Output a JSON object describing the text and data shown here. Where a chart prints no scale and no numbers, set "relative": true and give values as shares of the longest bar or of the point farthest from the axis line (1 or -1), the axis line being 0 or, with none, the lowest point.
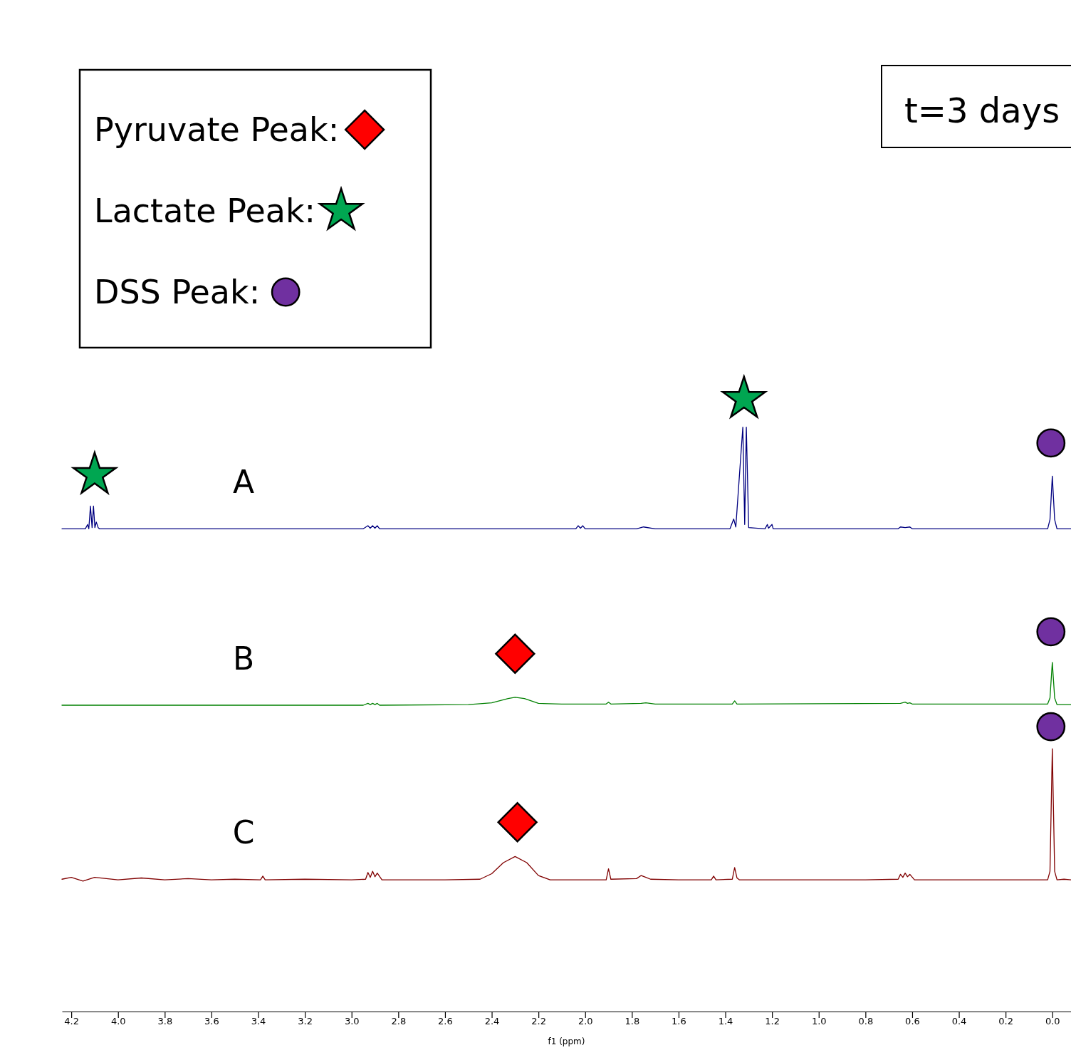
{
  "chart_data": {
    "type": "line",
    "title": "t=3 days",
    "xlabel": "f1 (ppm)",
    "relative": true,
    "legend": "top left",
    "grid": false,
    "tick_labels": "x",
    "xlim": [
      4.24,
      -0.08
    ],
    "xticks": [
      4.2,
      {
        "value": 4.0,
        "label": "4.0"
      },
      3.8,
      3.6,
      3.4,
      3.2,
      {
        "value": 3.0,
        "label": "3.0"
      },
      2.8,
      2.6,
      2.4,
      2.2,
      {
        "value": 2.0,
        "label": "2.0"
      },
      1.8,
      1.6,
      1.4,
      1.2,
      {
        "value": 1.0,
        "label": "1.0"
      },
      0.8,
      0.6,
      0.4,
      0.2,
      {
        "value": 0,
        "label": "0.0"
      }
    ],
    "annotations": [
      "A",
      "B",
      "C"
    ],
    "series": [
      {
        "color": "#000080",
        "marker": "none",
        "x": [
          4.24,
          4.14,
          4.13,
          4.125,
          4.118,
          4.111,
          4.105,
          4.099,
          4.093,
          4.085,
          4.08,
          2.95,
          2.93,
          2.92,
          2.91,
          2.9,
          2.89,
          2.88,
          2.04,
          2.03,
          2.02,
          2.01,
          2.0,
          1.78,
          1.75,
          1.7,
          1.38,
          1.364,
          1.355,
          1.325,
          1.317,
          1.31,
          1.3,
          1.23,
          1.22,
          1.215,
          1.2,
          1.195,
          0.66,
          0.65,
          0.63,
          0.61,
          0.6,
          0.02,
          0.01,
          0,
          -0.01,
          -0.02,
          -0.08
        ],
        "values": [
          0.788,
          0.788,
          0.795,
          0.788,
          0.825,
          0.79,
          0.825,
          0.79,
          0.799,
          0.79,
          0.788,
          0.788,
          0.793,
          0.789,
          0.793,
          0.789,
          0.793,
          0.788,
          0.788,
          0.793,
          0.789,
          0.793,
          0.788,
          0.788,
          0.791,
          0.788,
          0.788,
          0.804,
          0.791,
          0.954,
          0.795,
          0.954,
          0.79,
          0.788,
          0.795,
          0.789,
          0.795,
          0.788,
          0.788,
          0.791,
          0.79,
          0.791,
          0.788,
          0.788,
          0.803,
          0.874,
          0.803,
          0.788,
          0.788
        ]
      },
      {
        "color": "#008000",
        "marker": "none",
        "x": [
          4.24,
          2.95,
          2.93,
          2.92,
          2.91,
          2.9,
          2.89,
          2.88,
          2.5,
          2.4,
          2.33,
          2.3,
          2.26,
          2.2,
          2.1,
          1.91,
          1.9,
          1.89,
          1.76,
          1.74,
          1.7,
          1.37,
          1.36,
          1.35,
          0.65,
          0.63,
          0.62,
          0.61,
          0.6,
          0.02,
          0.01,
          0,
          -0.01,
          -0.02,
          -0.08
        ],
        "values": [
          0.5,
          0.5,
          0.503,
          0.501,
          0.503,
          0.501,
          0.503,
          0.5,
          0.501,
          0.504,
          0.511,
          0.513,
          0.511,
          0.503,
          0.502,
          0.502,
          0.505,
          0.502,
          0.503,
          0.504,
          0.502,
          0.502,
          0.507,
          0.502,
          0.503,
          0.505,
          0.503,
          0.504,
          0.502,
          0.502,
          0.512,
          0.57,
          0.512,
          0.501,
          0.501
        ]
      },
      {
        "color": "#800000",
        "marker": "none",
        "x": [
          4.24,
          4.2,
          4.15,
          4.1,
          4.0,
          3.9,
          3.8,
          3.7,
          3.6,
          3.5,
          3.39,
          3.38,
          3.37,
          3.2,
          3.0,
          2.94,
          2.93,
          2.92,
          2.91,
          2.9,
          2.89,
          2.87,
          2.6,
          2.45,
          2.4,
          2.35,
          2.3,
          2.25,
          2.2,
          2.15,
          2.0,
          1.91,
          1.9,
          1.89,
          1.78,
          1.76,
          1.74,
          1.72,
          1.6,
          1.46,
          1.45,
          1.44,
          1.37,
          1.36,
          1.35,
          1.34,
          1.2,
          1.0,
          0.8,
          0.66,
          0.65,
          0.64,
          0.63,
          0.62,
          0.61,
          0.59,
          0.4,
          0.2,
          0.02,
          0.01,
          0,
          -0.01,
          -0.02,
          -0.05,
          -0.08
        ],
        "values": [
          0.216,
          0.219,
          0.213,
          0.219,
          0.215,
          0.218,
          0.215,
          0.217,
          0.215,
          0.216,
          0.215,
          0.221,
          0.215,
          0.216,
          0.215,
          0.216,
          0.227,
          0.219,
          0.229,
          0.22,
          0.226,
          0.215,
          0.215,
          0.216,
          0.225,
          0.243,
          0.253,
          0.243,
          0.222,
          0.215,
          0.215,
          0.215,
          0.233,
          0.216,
          0.217,
          0.222,
          0.219,
          0.216,
          0.215,
          0.215,
          0.221,
          0.215,
          0.216,
          0.235,
          0.218,
          0.215,
          0.215,
          0.215,
          0.215,
          0.216,
          0.224,
          0.219,
          0.226,
          0.22,
          0.224,
          0.215,
          0.215,
          0.215,
          0.215,
          0.229,
          0.429,
          0.229,
          0.215,
          0.216,
          0.215
        ]
      },
      {
        "type": "scatter",
        "name": "Pyruvate Peak:",
        "color": "#ff0000",
        "marker": "diamond",
        "x": [
          2.3,
          2.29
        ],
        "values": [
          0.584,
          0.309
        ]
      },
      {
        "type": "scatter",
        "name": "Lactate Peak:",
        "color": "#00a651",
        "marker": "star",
        "x": [
          4.1,
          1.32
        ],
        "values": [
          0.876,
          1
        ]
      },
      {
        "type": "scatter",
        "name": "DSS Peak:",
        "color": "#7030a0",
        "marker": "circle",
        "x": [
          0.006,
          0.006,
          0.006
        ],
        "values": [
          0.928,
          0.62,
          0.465
        ]
      }
    ]
  }
}
